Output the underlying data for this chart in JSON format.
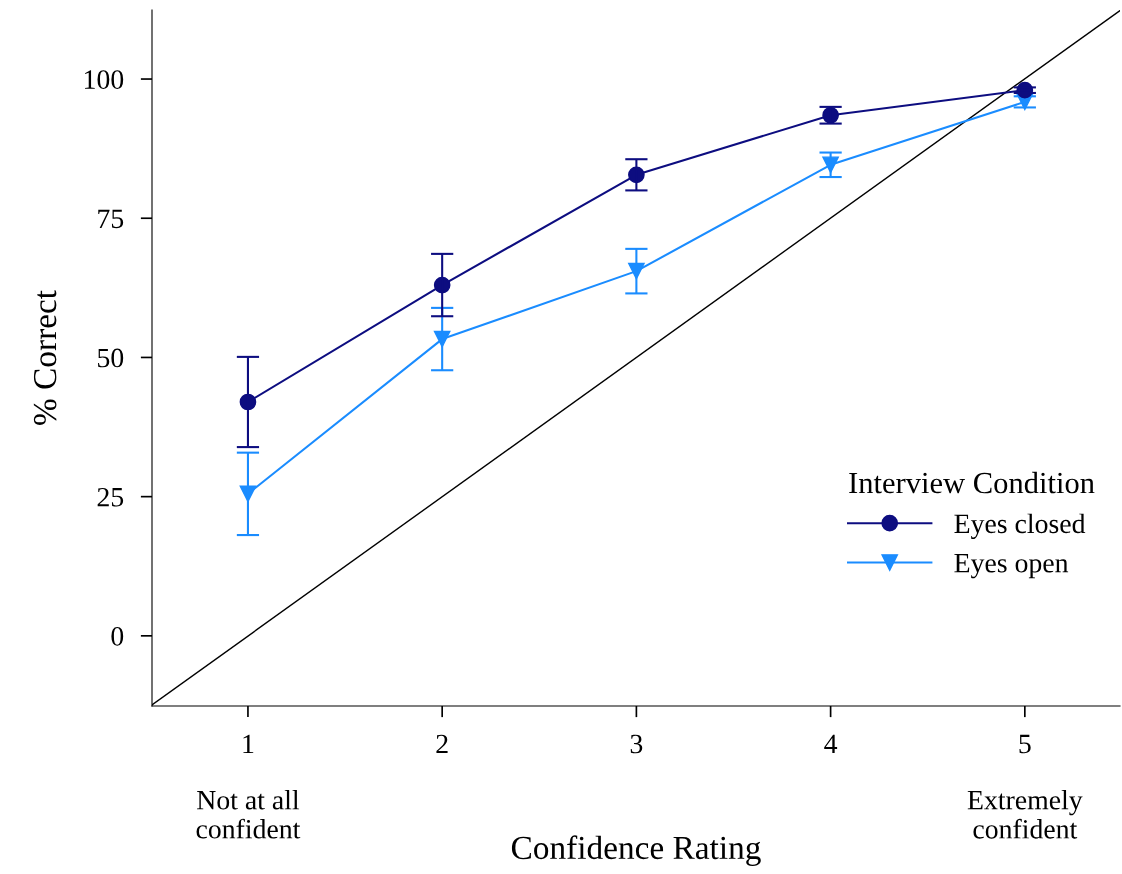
{
  "chart_data": {
    "type": "line",
    "xlabel": "Confidence Rating",
    "ylabel": "% Correct",
    "legend_title": "Interview Condition",
    "x": [
      1,
      2,
      3,
      4,
      5
    ],
    "series": [
      {
        "name": "Eyes closed",
        "color": "#0d0d80",
        "marker": "circle",
        "values": [
          42.0,
          63.0,
          82.8,
          93.5,
          98.0
        ],
        "errors": [
          8.1,
          5.6,
          2.8,
          1.5,
          0.5
        ]
      },
      {
        "name": "Eyes open",
        "color": "#1a8cff",
        "marker": "triangle",
        "values": [
          25.5,
          53.3,
          65.5,
          84.6,
          95.9
        ],
        "errors": [
          7.4,
          5.6,
          4.0,
          2.2,
          1.0
        ]
      },
      {
        "type": "line",
        "color": "#000000",
        "marker": "none",
        "x": [
          0.506,
          5.49
        ],
        "values": [
          -12.4,
          112.3
        ]
      }
    ],
    "xlim": [
      0.506,
      5.49
    ],
    "xticks": [
      1,
      2,
      3,
      4,
      5
    ],
    "ylim": [
      -12.6,
      112.4
    ],
    "yticks": [
      0,
      25,
      50,
      75,
      100
    ],
    "annotations": [
      "Not at all\nconfident",
      "Extremely\nconfident"
    ],
    "grid": false,
    "legend": "center right",
    "line_style": "solid"
  }
}
